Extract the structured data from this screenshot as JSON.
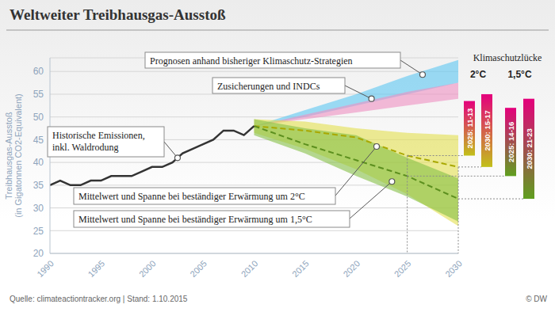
{
  "chart_data": {
    "type": "line",
    "title": "Weltweiter Treibhausgas-Ausstoß",
    "ylabel": [
      "Treibhausgas-Ausstoß",
      "(in Gigatonnen CO2-Equivalent)"
    ],
    "source": "Quelle: climateactiontracker.org | Stand: 1.10.2015",
    "credit": "© DW",
    "x": [
      1990,
      1991,
      1992,
      1993,
      1994,
      1995,
      1996,
      1997,
      1998,
      1999,
      2000,
      2001,
      2002,
      2003,
      2004,
      2005,
      2006,
      2007,
      2008,
      2009,
      2010,
      2015,
      2020,
      2025,
      2030
    ],
    "xlim": [
      1990,
      2030
    ],
    "xticks": [
      1990,
      1995,
      2000,
      2005,
      2010,
      2015,
      2020,
      2025,
      2030
    ],
    "ylim": [
      20,
      63
    ],
    "yticks": [
      20,
      25,
      30,
      35,
      40,
      45,
      50,
      55,
      60
    ],
    "grid": true,
    "series": [
      {
        "type": "area",
        "color": "#5cc6f2",
        "low": [
          null,
          null,
          null,
          null,
          null,
          null,
          null,
          null,
          null,
          null,
          null,
          null,
          null,
          null,
          null,
          null,
          null,
          null,
          null,
          null,
          48,
          50,
          52.5,
          55,
          57.5
        ],
        "high": [
          null,
          null,
          null,
          null,
          null,
          null,
          null,
          null,
          null,
          null,
          null,
          null,
          null,
          null,
          null,
          null,
          null,
          null,
          null,
          null,
          48,
          51.5,
          55,
          59,
          62.5
        ]
      },
      {
        "type": "area",
        "color": "#ef8fc2",
        "low": [
          null,
          null,
          null,
          null,
          null,
          null,
          null,
          null,
          null,
          null,
          null,
          null,
          null,
          null,
          null,
          null,
          null,
          null,
          null,
          null,
          48,
          49.5,
          51,
          52.5,
          54
        ],
        "high": [
          null,
          null,
          null,
          null,
          null,
          null,
          null,
          null,
          null,
          null,
          null,
          null,
          null,
          null,
          null,
          null,
          null,
          null,
          null,
          null,
          48,
          50.5,
          53,
          55.5,
          57.5
        ]
      },
      {
        "type": "area",
        "color": "#e3df4f",
        "low": [
          null,
          null,
          null,
          null,
          null,
          null,
          null,
          null,
          null,
          null,
          null,
          null,
          null,
          null,
          null,
          null,
          null,
          null,
          null,
          null,
          46.5,
          43,
          38.5,
          33,
          26
        ],
        "high": [
          null,
          null,
          null,
          null,
          null,
          null,
          null,
          null,
          null,
          null,
          null,
          null,
          null,
          null,
          null,
          null,
          null,
          null,
          null,
          null,
          49.5,
          49,
          47.5,
          46.5,
          46
        ]
      },
      {
        "type": "area",
        "color": "#86c046",
        "low": [
          null,
          null,
          null,
          null,
          null,
          null,
          null,
          null,
          null,
          null,
          null,
          null,
          null,
          null,
          null,
          null,
          null,
          null,
          null,
          null,
          46,
          42,
          37,
          32.5,
          27
        ],
        "high": [
          null,
          null,
          null,
          null,
          null,
          null,
          null,
          null,
          null,
          null,
          null,
          null,
          null,
          null,
          null,
          null,
          null,
          null,
          null,
          null,
          49.5,
          47.5,
          46,
          41,
          36.5
        ]
      },
      {
        "type": "line",
        "line_style": "dashed",
        "color": "#a9a800",
        "values": [
          null,
          null,
          null,
          null,
          null,
          null,
          null,
          null,
          null,
          null,
          null,
          null,
          null,
          null,
          null,
          null,
          null,
          null,
          null,
          null,
          48,
          47,
          45.5,
          41.5,
          39
        ]
      },
      {
        "type": "line",
        "line_style": "dashed",
        "color": "#5c8f1e",
        "values": [
          null,
          null,
          null,
          null,
          null,
          null,
          null,
          null,
          null,
          null,
          null,
          null,
          null,
          null,
          null,
          null,
          null,
          null,
          null,
          null,
          48,
          44,
          40.5,
          37,
          32
        ]
      },
      {
        "type": "line",
        "line_style": "solid",
        "color": "#333333",
        "values": [
          35,
          36,
          35,
          35,
          36,
          36,
          37,
          37,
          37,
          38,
          39,
          39,
          40,
          42,
          43,
          44,
          45,
          47,
          47,
          46,
          48,
          null,
          null,
          null,
          null
        ]
      }
    ],
    "annotations": [
      {
        "lines": [
          "Prognosen anhand bisheriger Klimaschutz-Strategien"
        ],
        "x": 2026.5,
        "y": 59.3
      },
      {
        "lines": [
          "Zusicherungen und INDCs"
        ],
        "x": 2021.5,
        "y": 54
      },
      {
        "lines": [
          "Historische Emissionen,",
          "inkl. Waldrodung"
        ],
        "x": 2002.5,
        "y": 41
      },
      {
        "lines": [
          "Mittelwert und Spanne bei beständiger Erwärmung um 2°C"
        ],
        "x": 2022,
        "y": 43.5
      },
      {
        "lines": [
          "Mittelwert und Spanne bei beständiger Erwärmung um 1,5°C"
        ],
        "x": 2023.5,
        "y": 35.8
      }
    ],
    "gap": {
      "title": "Klimaschutzlücke",
      "groups": [
        {
          "label": "2°C",
          "bars": [
            {
              "label": "2025: 11-13",
              "year": 2025,
              "low": 41.5,
              "high": 53.5,
              "color": "#c2c01a"
            },
            {
              "label": "2030: 15-17",
              "year": 2030,
              "low": 39,
              "high": 55,
              "color": "#c2c01a"
            }
          ]
        },
        {
          "label": "1,5°C",
          "bars": [
            {
              "label": "2025: 14-16",
              "year": 2025,
              "low": 37,
              "high": 52,
              "color": "#5f9f1f"
            },
            {
              "label": "2030: 21-23",
              "year": 2030,
              "low": 32,
              "high": 54,
              "color": "#5f9f1f"
            }
          ]
        }
      ]
    }
  }
}
